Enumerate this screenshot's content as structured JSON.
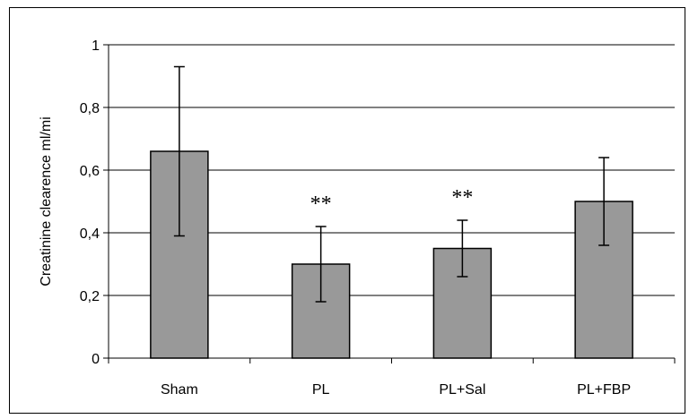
{
  "chart_data": {
    "type": "bar",
    "categories": [
      "Sham",
      "PL",
      "PL+Sal",
      "PL+FBP"
    ],
    "values": [
      0.66,
      0.3,
      0.35,
      0.5
    ],
    "error_low": [
      0.39,
      0.18,
      0.26,
      0.36
    ],
    "error_high": [
      0.93,
      0.42,
      0.44,
      0.64
    ],
    "annotations": [
      "",
      "**",
      "**",
      ""
    ],
    "ylabel": "Creatinine clearence ml/mi",
    "xlabel": "",
    "title": "",
    "ylim": [
      0,
      1
    ],
    "yticks": [
      0,
      0.2,
      0.4,
      0.6,
      0.8,
      1
    ],
    "ytick_labels": [
      "0",
      "0,2",
      "0,4",
      "0,6",
      "0,8",
      "1"
    ],
    "grid": true,
    "legend": "none",
    "colors": {
      "bar": "#999999",
      "edge": "#000000",
      "grid": "#000000",
      "background": "#ffffff"
    }
  }
}
